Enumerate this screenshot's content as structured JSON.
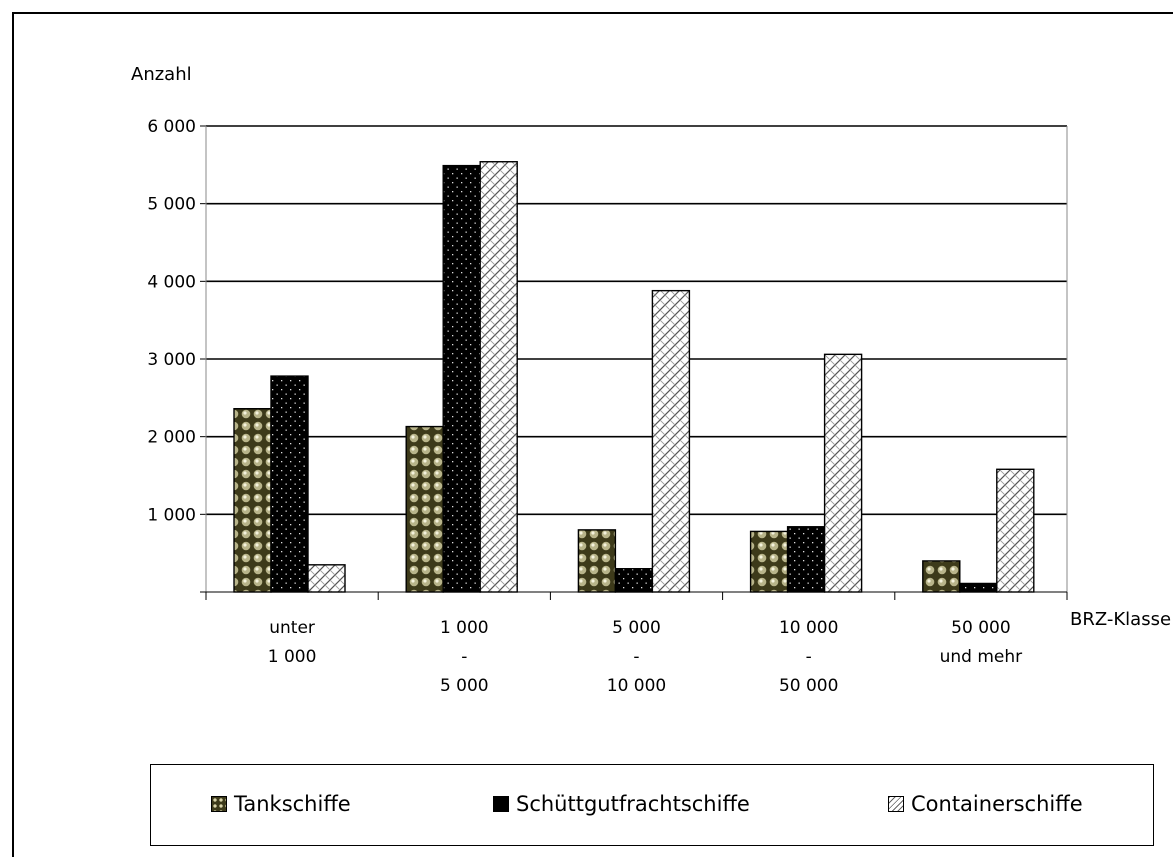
{
  "chart_data": {
    "type": "bar",
    "ylabel": "Anzahl",
    "xlabel": "BRZ-Klasse",
    "ylim": [
      0,
      6000
    ],
    "yticks": [
      1000,
      2000,
      3000,
      4000,
      5000,
      6000
    ],
    "ytick_labels": [
      "1 000",
      "2 000",
      "3 000",
      "4 000",
      "5 000",
      "6 000"
    ],
    "categories": [
      [
        "unter",
        "1 000"
      ],
      [
        "1 000",
        "-",
        "5 000"
      ],
      [
        "5 000",
        "-",
        "10 000"
      ],
      [
        "10 000",
        "-",
        "50 000"
      ],
      [
        "50 000",
        "und mehr"
      ]
    ],
    "series": [
      {
        "name": "Tankschiffe",
        "values": [
          2360,
          2130,
          800,
          780,
          400
        ]
      },
      {
        "name": "Schüttgutfrachtschiffe",
        "values": [
          2780,
          5490,
          300,
          840,
          110
        ]
      },
      {
        "name": "Containerschiffe",
        "values": [
          350,
          5540,
          3880,
          3060,
          1580
        ]
      }
    ],
    "grid": true,
    "legend_position": "bottom"
  }
}
